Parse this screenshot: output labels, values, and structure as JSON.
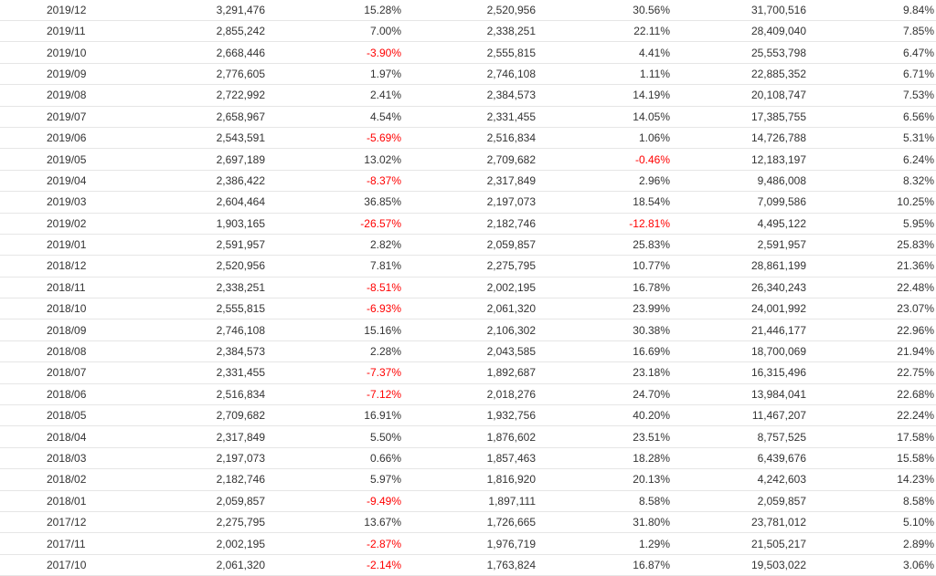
{
  "table": {
    "rows": [
      [
        "2019/12",
        "3,291,476",
        "15.28%",
        "2,520,956",
        "30.56%",
        "31,700,516",
        "9.84%"
      ],
      [
        "2019/11",
        "2,855,242",
        "7.00%",
        "2,338,251",
        "22.11%",
        "28,409,040",
        "7.85%"
      ],
      [
        "2019/10",
        "2,668,446",
        "-3.90%",
        "2,555,815",
        "4.41%",
        "25,553,798",
        "6.47%"
      ],
      [
        "2019/09",
        "2,776,605",
        "1.97%",
        "2,746,108",
        "1.11%",
        "22,885,352",
        "6.71%"
      ],
      [
        "2019/08",
        "2,722,992",
        "2.41%",
        "2,384,573",
        "14.19%",
        "20,108,747",
        "7.53%"
      ],
      [
        "2019/07",
        "2,658,967",
        "4.54%",
        "2,331,455",
        "14.05%",
        "17,385,755",
        "6.56%"
      ],
      [
        "2019/06",
        "2,543,591",
        "-5.69%",
        "2,516,834",
        "1.06%",
        "14,726,788",
        "5.31%"
      ],
      [
        "2019/05",
        "2,697,189",
        "13.02%",
        "2,709,682",
        "-0.46%",
        "12,183,197",
        "6.24%"
      ],
      [
        "2019/04",
        "2,386,422",
        "-8.37%",
        "2,317,849",
        "2.96%",
        "9,486,008",
        "8.32%"
      ],
      [
        "2019/03",
        "2,604,464",
        "36.85%",
        "2,197,073",
        "18.54%",
        "7,099,586",
        "10.25%"
      ],
      [
        "2019/02",
        "1,903,165",
        "-26.57%",
        "2,182,746",
        "-12.81%",
        "4,495,122",
        "5.95%"
      ],
      [
        "2019/01",
        "2,591,957",
        "2.82%",
        "2,059,857",
        "25.83%",
        "2,591,957",
        "25.83%"
      ],
      [
        "2018/12",
        "2,520,956",
        "7.81%",
        "2,275,795",
        "10.77%",
        "28,861,199",
        "21.36%"
      ],
      [
        "2018/11",
        "2,338,251",
        "-8.51%",
        "2,002,195",
        "16.78%",
        "26,340,243",
        "22.48%"
      ],
      [
        "2018/10",
        "2,555,815",
        "-6.93%",
        "2,061,320",
        "23.99%",
        "24,001,992",
        "23.07%"
      ],
      [
        "2018/09",
        "2,746,108",
        "15.16%",
        "2,106,302",
        "30.38%",
        "21,446,177",
        "22.96%"
      ],
      [
        "2018/08",
        "2,384,573",
        "2.28%",
        "2,043,585",
        "16.69%",
        "18,700,069",
        "21.94%"
      ],
      [
        "2018/07",
        "2,331,455",
        "-7.37%",
        "1,892,687",
        "23.18%",
        "16,315,496",
        "22.75%"
      ],
      [
        "2018/06",
        "2,516,834",
        "-7.12%",
        "2,018,276",
        "24.70%",
        "13,984,041",
        "22.68%"
      ],
      [
        "2018/05",
        "2,709,682",
        "16.91%",
        "1,932,756",
        "40.20%",
        "11,467,207",
        "22.24%"
      ],
      [
        "2018/04",
        "2,317,849",
        "5.50%",
        "1,876,602",
        "23.51%",
        "8,757,525",
        "17.58%"
      ],
      [
        "2018/03",
        "2,197,073",
        "0.66%",
        "1,857,463",
        "18.28%",
        "6,439,676",
        "15.58%"
      ],
      [
        "2018/02",
        "2,182,746",
        "5.97%",
        "1,816,920",
        "20.13%",
        "4,242,603",
        "14.23%"
      ],
      [
        "2018/01",
        "2,059,857",
        "-9.49%",
        "1,897,111",
        "8.58%",
        "2,059,857",
        "8.58%"
      ],
      [
        "2017/12",
        "2,275,795",
        "13.67%",
        "1,726,665",
        "31.80%",
        "23,781,012",
        "5.10%"
      ],
      [
        "2017/11",
        "2,002,195",
        "-2.87%",
        "1,976,719",
        "1.29%",
        "21,505,217",
        "2.89%"
      ],
      [
        "2017/10",
        "2,061,320",
        "-2.14%",
        "1,763,824",
        "16.87%",
        "19,503,022",
        "3.06%"
      ]
    ]
  },
  "colors": {
    "text": "#333333",
    "negative": "#ff0000",
    "row_border": "#e6e6e6"
  }
}
